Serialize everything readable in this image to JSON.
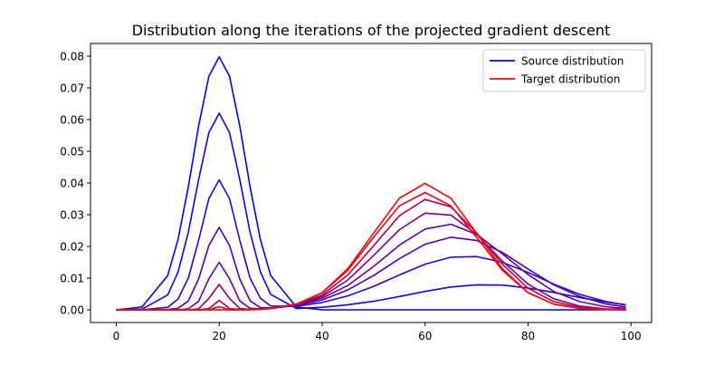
{
  "chart_data": {
    "type": "line",
    "title": "Distribution along the iterations of the projected gradient descent",
    "xlabel": "",
    "ylabel": "",
    "xlim": [
      -5,
      104
    ],
    "ylim": [
      -0.004,
      0.084
    ],
    "grid": false,
    "legend_placement": "top-right",
    "xticks": [
      0,
      20,
      40,
      60,
      80,
      100
    ],
    "xtick_labels": [
      "0",
      "20",
      "40",
      "60",
      "80",
      "100"
    ],
    "yticks": [
      0,
      0.01,
      0.02,
      0.03,
      0.04,
      0.05,
      0.06,
      0.07,
      0.08
    ],
    "ytick_labels": [
      "0.00",
      "0.01",
      "0.02",
      "0.03",
      "0.04",
      "0.05",
      "0.06",
      "0.07",
      "0.08"
    ],
    "x": [
      0,
      5,
      10,
      12,
      14,
      16,
      18,
      20,
      22,
      24,
      26,
      28,
      30,
      35,
      40,
      45,
      50,
      55,
      60,
      65,
      70,
      75,
      80,
      85,
      90,
      95,
      99
    ],
    "series": [
      {
        "name": "Source distribution",
        "color": "#0000ff",
        "legend": true,
        "values": [
          0,
          0.0009,
          0.0108,
          0.0222,
          0.0388,
          0.0579,
          0.0737,
          0.0798,
          0.0737,
          0.0579,
          0.0388,
          0.0222,
          0.0108,
          0.0009,
          0,
          0,
          0,
          0,
          0,
          0,
          0,
          0,
          0,
          0,
          0,
          0,
          0
        ]
      },
      {
        "color": "#1a00e5",
        "values": [
          0,
          0.0002,
          0.0047,
          0.0119,
          0.0245,
          0.041,
          0.0559,
          0.062,
          0.0559,
          0.041,
          0.0245,
          0.012,
          0.0049,
          0.0004,
          0.0008,
          0.0016,
          0.0027,
          0.0042,
          0.0058,
          0.0072,
          0.0079,
          0.0078,
          0.0069,
          0.0055,
          0.0039,
          0.0025,
          0.0016
        ]
      },
      {
        "color": "#3300cc",
        "values": [
          0,
          0,
          0.0008,
          0.0034,
          0.01,
          0.0219,
          0.0351,
          0.041,
          0.0351,
          0.0219,
          0.01,
          0.0037,
          0.0012,
          0.0011,
          0.0023,
          0.0044,
          0.0074,
          0.011,
          0.0144,
          0.0166,
          0.0168,
          0.015,
          0.0118,
          0.0081,
          0.0049,
          0.0027,
          0.0015
        ]
      },
      {
        "color": "#4d00b2",
        "values": [
          0,
          0,
          0.0001,
          0.0005,
          0.0028,
          0.0097,
          0.0203,
          0.026,
          0.0203,
          0.0097,
          0.0029,
          0.0007,
          0.0006,
          0.0013,
          0.0031,
          0.0063,
          0.0108,
          0.0161,
          0.0207,
          0.0229,
          0.0219,
          0.0181,
          0.0129,
          0.0079,
          0.0042,
          0.0019,
          0.0009
        ]
      },
      {
        "color": "#660099",
        "values": [
          0,
          0,
          0,
          0,
          0.0003,
          0.0027,
          0.0098,
          0.015,
          0.0098,
          0.0028,
          0.0005,
          0.0003,
          0.0005,
          0.0015,
          0.0037,
          0.0077,
          0.0137,
          0.0204,
          0.0255,
          0.027,
          0.0238,
          0.0177,
          0.0111,
          0.0058,
          0.0026,
          0.001,
          0.0004
        ]
      },
      {
        "color": "#80007f",
        "values": [
          0,
          0,
          0,
          0,
          0,
          0.0003,
          0.0036,
          0.008,
          0.0036,
          0.0004,
          0.0001,
          0.0002,
          0.0004,
          0.0015,
          0.0042,
          0.0094,
          0.0171,
          0.0253,
          0.0305,
          0.0299,
          0.0238,
          0.0154,
          0.0081,
          0.0035,
          0.0012,
          0.0003,
          0.0001
        ]
      },
      {
        "color": "#b2004d",
        "values": [
          0,
          0,
          0,
          0,
          0,
          0,
          0.0004,
          0.003,
          0.0004,
          0.0001,
          0.0001,
          0.0002,
          0.0004,
          0.0016,
          0.0047,
          0.011,
          0.0202,
          0.0297,
          0.0348,
          0.0325,
          0.0243,
          0.0144,
          0.0068,
          0.0026,
          0.0008,
          0.0002,
          0
        ]
      },
      {
        "color": "#e5001a",
        "values": [
          0,
          0,
          0,
          0,
          0,
          0,
          0,
          0.001,
          0,
          0,
          0,
          0.0001,
          0.0005,
          0.0018,
          0.0054,
          0.0125,
          0.0229,
          0.0328,
          0.037,
          0.0328,
          0.0229,
          0.0125,
          0.0054,
          0.0018,
          0.0005,
          0.0001,
          0
        ]
      },
      {
        "name": "Target distribution",
        "color": "#ff0000",
        "legend": true,
        "values": [
          0,
          0,
          0,
          0,
          0,
          0,
          0,
          0,
          0,
          0,
          0,
          0.0002,
          0.0004,
          0.0018,
          0.0054,
          0.013,
          0.0242,
          0.0352,
          0.0399,
          0.0352,
          0.0242,
          0.013,
          0.0054,
          0.0018,
          0.0004,
          0.0001,
          0
        ]
      }
    ]
  }
}
